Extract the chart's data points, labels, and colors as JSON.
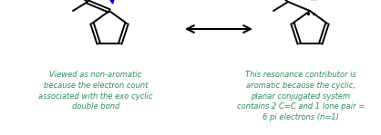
{
  "bg_color": "#ffffff",
  "text_color_green": "#2e8b57",
  "text_color_black": "#000000",
  "text_color_blue": "#0000cc",
  "left_label": "Viewed as non-aromatic\nbecause the electron count\nassociated with the exo cyclic\ndouble bond",
  "right_label": "This resonance contributor is\naromatic because the cyclic,\nplanar conjugated system\ncontains 2 C=C and 1 lone pair =\n6 pi electrons (n=1)",
  "figsize": [
    4.18,
    1.49
  ],
  "dpi": 100
}
